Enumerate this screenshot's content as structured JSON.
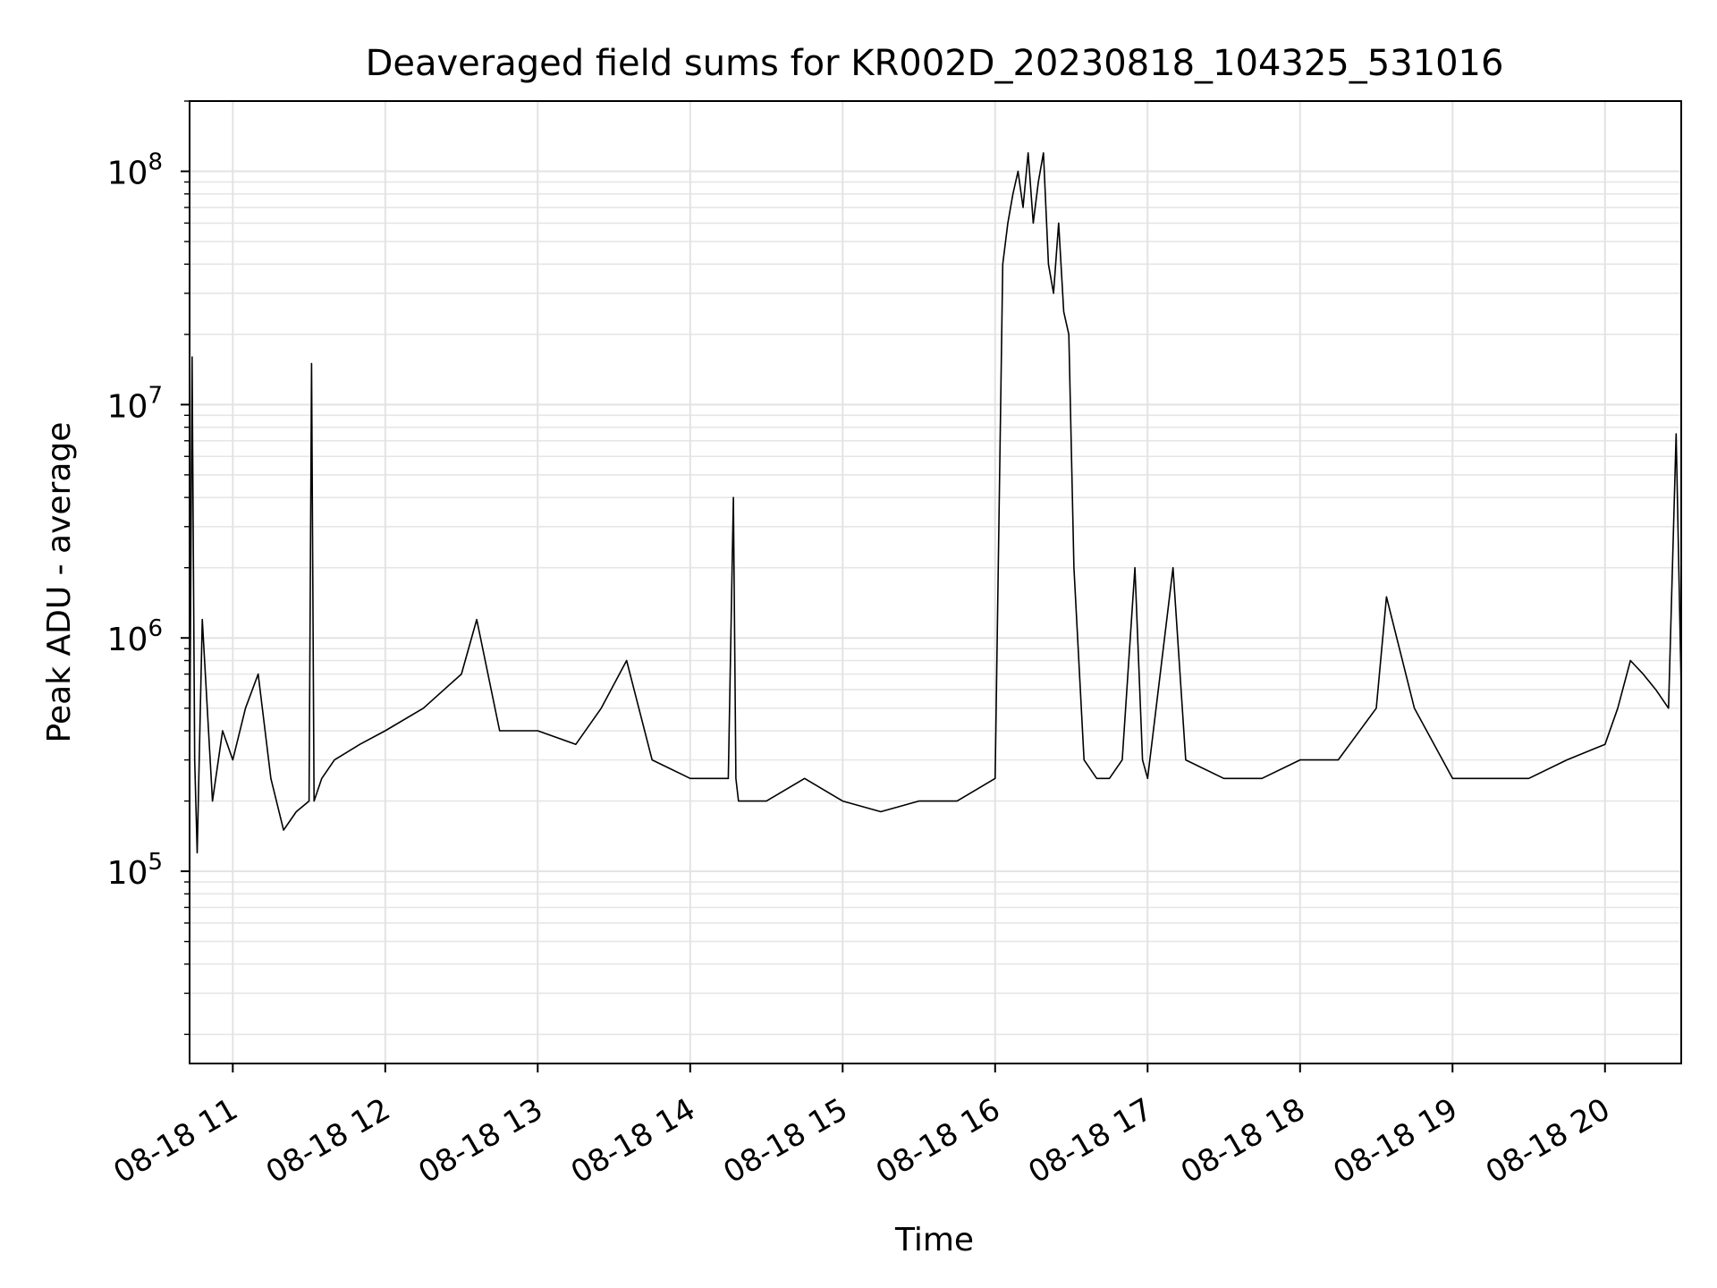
{
  "chart_data": {
    "type": "line",
    "title": "Deaveraged field sums for KR002D_20230818_104325_531016",
    "xlabel": "Time",
    "ylabel": "Peak ADU - average",
    "yscale": "log",
    "xlim": [
      "2023-08-18 10:43",
      "2023-08-18 20:30"
    ],
    "ylim": [
      15000,
      200000000
    ],
    "x_ticks": [
      {
        "value": "2023-08-18 11:00",
        "label": "08-18 11"
      },
      {
        "value": "2023-08-18 12:00",
        "label": "08-18 12"
      },
      {
        "value": "2023-08-18 13:00",
        "label": "08-18 13"
      },
      {
        "value": "2023-08-18 14:00",
        "label": "08-18 14"
      },
      {
        "value": "2023-08-18 15:00",
        "label": "08-18 15"
      },
      {
        "value": "2023-08-18 16:00",
        "label": "08-18 16"
      },
      {
        "value": "2023-08-18 17:00",
        "label": "08-18 17"
      },
      {
        "value": "2023-08-18 18:00",
        "label": "08-18 18"
      },
      {
        "value": "2023-08-18 19:00",
        "label": "08-18 19"
      },
      {
        "value": "2023-08-18 20:00",
        "label": "08-18 20"
      }
    ],
    "y_ticks": [
      {
        "value": 100000,
        "base": "10",
        "exp": "5"
      },
      {
        "value": 1000000,
        "base": "10",
        "exp": "6"
      },
      {
        "value": 10000000,
        "base": "10",
        "exp": "7"
      },
      {
        "value": 100000000,
        "base": "10",
        "exp": "8"
      }
    ],
    "grid": true,
    "series": [
      {
        "color": "#000000",
        "x": [
          "2023-08-18 10:43",
          "2023-08-18 10:44",
          "2023-08-18 10:45",
          "2023-08-18 10:46",
          "2023-08-18 10:48",
          "2023-08-18 10:52",
          "2023-08-18 10:56",
          "2023-08-18 11:00",
          "2023-08-18 11:05",
          "2023-08-18 11:10",
          "2023-08-18 11:15",
          "2023-08-18 11:20",
          "2023-08-18 11:25",
          "2023-08-18 11:30",
          "2023-08-18 11:31",
          "2023-08-18 11:32",
          "2023-08-18 11:35",
          "2023-08-18 11:40",
          "2023-08-18 11:50",
          "2023-08-18 12:00",
          "2023-08-18 12:15",
          "2023-08-18 12:30",
          "2023-08-18 12:36",
          "2023-08-18 12:45",
          "2023-08-18 13:00",
          "2023-08-18 13:15",
          "2023-08-18 13:25",
          "2023-08-18 13:35",
          "2023-08-18 13:45",
          "2023-08-18 14:00",
          "2023-08-18 14:15",
          "2023-08-18 14:17",
          "2023-08-18 14:18",
          "2023-08-18 14:19",
          "2023-08-18 14:30",
          "2023-08-18 14:45",
          "2023-08-18 15:00",
          "2023-08-18 15:15",
          "2023-08-18 15:30",
          "2023-08-18 15:45",
          "2023-08-18 16:00",
          "2023-08-18 16:03",
          "2023-08-18 16:05",
          "2023-08-18 16:07",
          "2023-08-18 16:09",
          "2023-08-18 16:11",
          "2023-08-18 16:13",
          "2023-08-18 16:15",
          "2023-08-18 16:17",
          "2023-08-18 16:19",
          "2023-08-18 16:21",
          "2023-08-18 16:23",
          "2023-08-18 16:25",
          "2023-08-18 16:27",
          "2023-08-18 16:29",
          "2023-08-18 16:31",
          "2023-08-18 16:35",
          "2023-08-18 16:40",
          "2023-08-18 16:45",
          "2023-08-18 16:50",
          "2023-08-18 16:55",
          "2023-08-18 16:58",
          "2023-08-18 17:00",
          "2023-08-18 17:10",
          "2023-08-18 17:15",
          "2023-08-18 17:30",
          "2023-08-18 17:45",
          "2023-08-18 18:00",
          "2023-08-18 18:15",
          "2023-08-18 18:30",
          "2023-08-18 18:34",
          "2023-08-18 18:45",
          "2023-08-18 19:00",
          "2023-08-18 19:15",
          "2023-08-18 19:30",
          "2023-08-18 19:45",
          "2023-08-18 20:00",
          "2023-08-18 20:05",
          "2023-08-18 20:10",
          "2023-08-18 20:15",
          "2023-08-18 20:20",
          "2023-08-18 20:25",
          "2023-08-18 20:28",
          "2023-08-18 20:30"
        ],
        "y": [
          250000,
          16000000,
          300000,
          120000,
          1200000,
          200000,
          400000,
          300000,
          500000,
          700000,
          250000,
          150000,
          180000,
          200000,
          15000000,
          200000,
          250000,
          300000,
          350000,
          400000,
          500000,
          700000,
          1200000,
          400000,
          400000,
          350000,
          500000,
          800000,
          300000,
          250000,
          250000,
          4000000,
          250000,
          200000,
          200000,
          250000,
          200000,
          180000,
          200000,
          200000,
          250000,
          40000000,
          60000000,
          80000000,
          100000000,
          70000000,
          120000000,
          60000000,
          90000000,
          120000000,
          40000000,
          30000000,
          60000000,
          25000000,
          20000000,
          2000000,
          300000,
          250000,
          250000,
          300000,
          2000000,
          300000,
          250000,
          2000000,
          300000,
          250000,
          250000,
          300000,
          300000,
          500000,
          1500000,
          500000,
          250000,
          250000,
          250000,
          300000,
          350000,
          500000,
          800000,
          700000,
          600000,
          500000,
          7500000,
          600000
        ]
      }
    ]
  }
}
